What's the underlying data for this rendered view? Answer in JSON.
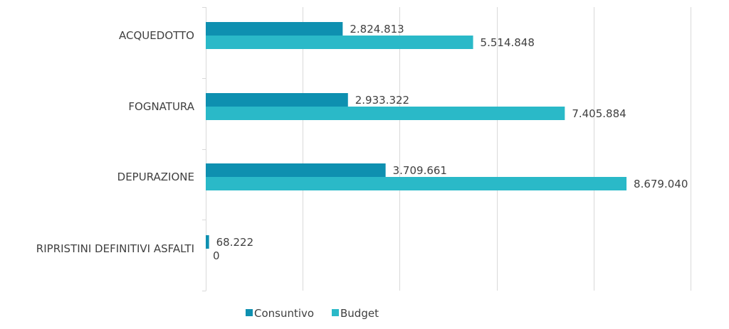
{
  "chart_data": {
    "type": "bar",
    "orientation": "horizontal",
    "categories": [
      "ACQUEDOTTO",
      "FOGNATURA",
      "DEPURAZIONE",
      "RIPRISTINI DEFINITIVI ASFALTI"
    ],
    "series": [
      {
        "name": "Consuntivo",
        "color": "#0e90b0",
        "values": [
          2824813,
          2933322,
          3709661,
          68222
        ],
        "labels": [
          "2.824.813",
          "2.933.322",
          "3.709.661",
          "68.222"
        ]
      },
      {
        "name": "Budget",
        "color": "#2ab9c8",
        "values": [
          5514848,
          7405884,
          8679040,
          0
        ],
        "labels": [
          "5.514.848",
          "7.405.884",
          "8.679.040",
          "0"
        ]
      }
    ],
    "xlim": [
      0,
      10000000
    ],
    "grid": true,
    "legend": "bottom",
    "title": "",
    "xlabel": "",
    "ylabel": ""
  }
}
